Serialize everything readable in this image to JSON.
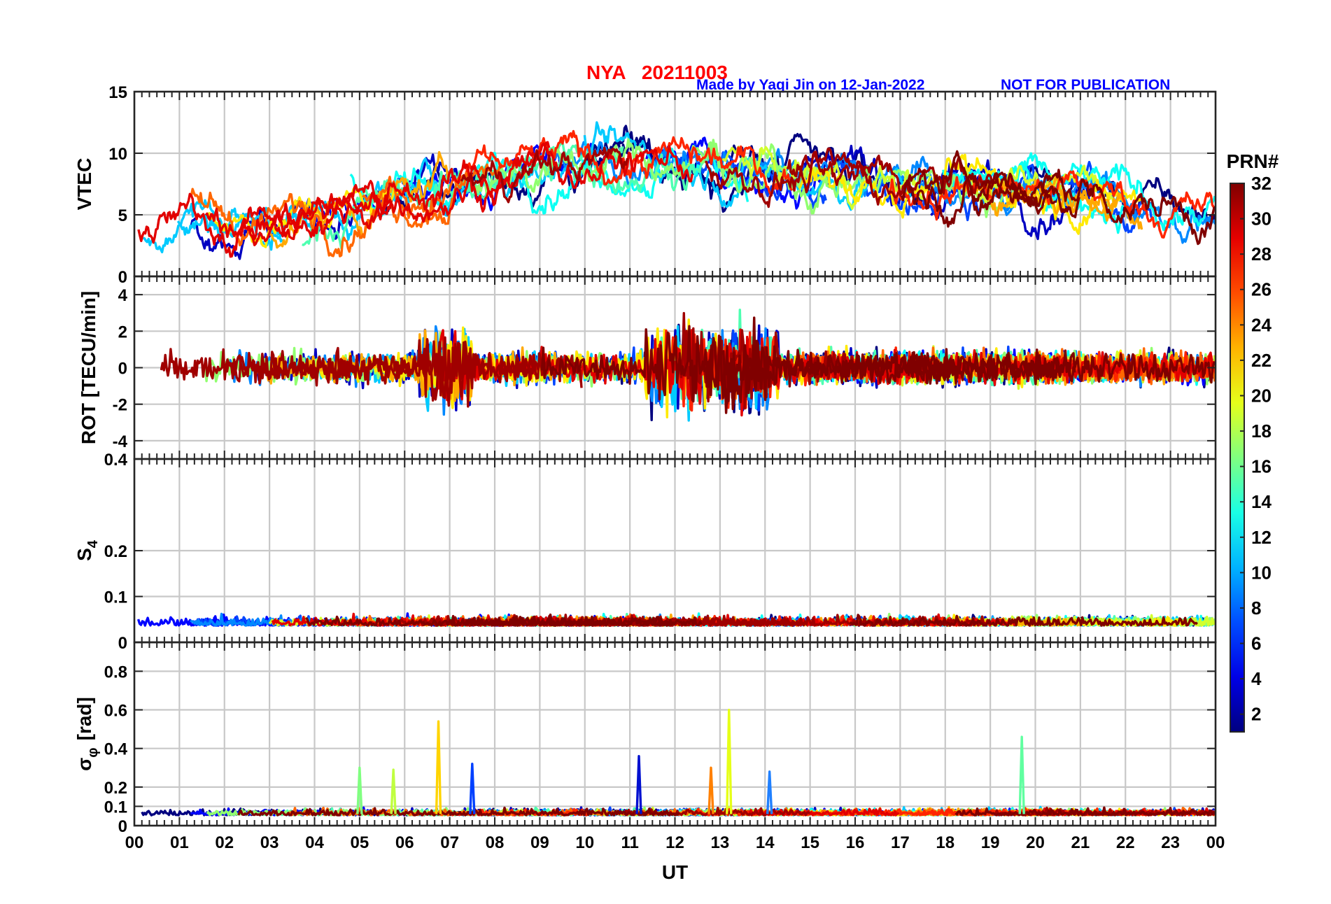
{
  "header": {
    "title": "NYA   20211003",
    "credit": "Made by Yaqi Jin on 12-Jan-2022",
    "note": "NOT FOR PUBLICATION",
    "title_color": "#ff0000",
    "credit_color": "#0000ff"
  },
  "chart_data": [
    {
      "id": "vtec",
      "type": "line",
      "ylabel": "VTEC",
      "ylim": [
        0,
        15
      ],
      "yticks": [
        0,
        5,
        10,
        15
      ],
      "ytick_labels": [
        "0",
        "5",
        "10",
        "15"
      ],
      "grid": true,
      "series_profile": {
        "baseline": [
          [
            0,
            4.5
          ],
          [
            3,
            4.5
          ],
          [
            6,
            6.5
          ],
          [
            9,
            9
          ],
          [
            12,
            9.5
          ],
          [
            15,
            8
          ],
          [
            18,
            7.5
          ],
          [
            21,
            7
          ],
          [
            24,
            5
          ]
        ],
        "spread": 1.6
      }
    },
    {
      "id": "rot",
      "type": "line",
      "ylabel": "ROT [TECU/min]",
      "ylim": [
        -5,
        5
      ],
      "yticks": [
        -4,
        -2,
        0,
        2,
        4
      ],
      "ytick_labels": [
        "-4",
        "-2",
        "0",
        "2",
        "4"
      ],
      "grid": true,
      "series_profile": {
        "baseline": [
          [
            0,
            0
          ],
          [
            24,
            0
          ]
        ],
        "spread": 0.8
      }
    },
    {
      "id": "s4",
      "type": "line",
      "ylabel": "S",
      "ylabel_sub": "4",
      "ylim": [
        0,
        0.4
      ],
      "yticks": [
        0,
        0.1,
        0.2,
        0.4
      ],
      "ytick_labels": [
        "0",
        "0.1",
        "0.2",
        "0.4"
      ],
      "grid": true,
      "series_profile": {
        "baseline": [
          [
            0,
            0.04
          ],
          [
            24,
            0.04
          ]
        ],
        "spread": 0.012
      }
    },
    {
      "id": "sigma_phi",
      "type": "line",
      "ylabel": "σ",
      "ylabel_sub": "φ",
      "ylabel_unit": "[rad]",
      "ylim": [
        0,
        0.95
      ],
      "yticks": [
        0,
        0.1,
        0.2,
        0.4,
        0.6,
        0.8
      ],
      "ytick_labels": [
        "0",
        "0.1",
        "0.2",
        "0.4",
        "0.6",
        "0.8"
      ],
      "grid": true,
      "series_profile": {
        "baseline": [
          [
            0,
            0.06
          ],
          [
            24,
            0.06
          ]
        ],
        "spread": 0.02
      },
      "spikes": [
        [
          6.75,
          0.54,
          "#ffd400"
        ],
        [
          13.2,
          0.6,
          "#e6ff18"
        ],
        [
          19.7,
          0.46,
          "#60ffa0"
        ],
        [
          11.2,
          0.36,
          "#0010d0"
        ],
        [
          7.5,
          0.32,
          "#0040ff"
        ],
        [
          14.1,
          0.28,
          "#2080ff"
        ],
        [
          12.8,
          0.3,
          "#ff8000"
        ],
        [
          5.0,
          0.3,
          "#80ff80"
        ],
        [
          5.75,
          0.29,
          "#c0ff40"
        ]
      ]
    }
  ],
  "shared_x": {
    "xlabel": "UT",
    "xlim": [
      0,
      24
    ],
    "ticks": [
      0,
      1,
      2,
      3,
      4,
      5,
      6,
      7,
      8,
      9,
      10,
      11,
      12,
      13,
      14,
      15,
      16,
      17,
      18,
      19,
      20,
      21,
      22,
      23,
      24
    ],
    "tick_labels": [
      "00",
      "01",
      "02",
      "03",
      "04",
      "05",
      "06",
      "07",
      "08",
      "09",
      "10",
      "11",
      "12",
      "13",
      "14",
      "15",
      "16",
      "17",
      "18",
      "19",
      "20",
      "21",
      "22",
      "23",
      "00"
    ]
  },
  "colorbar": {
    "label": "PRN#",
    "range": [
      1,
      32
    ],
    "ticks": [
      2,
      4,
      6,
      8,
      10,
      12,
      14,
      16,
      18,
      20,
      22,
      24,
      26,
      28,
      30,
      32
    ],
    "tick_labels": [
      "2",
      "4",
      "6",
      "8",
      "10",
      "12",
      "14",
      "16",
      "18",
      "20",
      "22",
      "24",
      "26",
      "28",
      "30",
      "32"
    ],
    "colormap": "jet"
  }
}
